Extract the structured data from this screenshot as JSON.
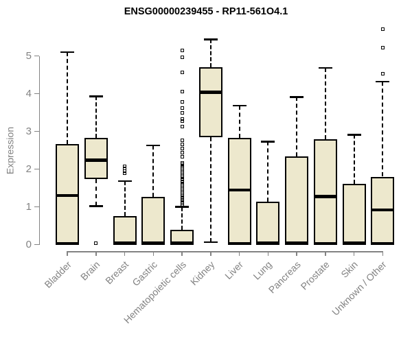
{
  "chart_data": {
    "type": "boxplot",
    "title": "ENSG00000239455 - RP11-561O4.1",
    "ylabel": "Expression",
    "xlabel": "",
    "ylim": [
      0,
      5.75
    ],
    "yticks": [
      0,
      1,
      2,
      3,
      4,
      5
    ],
    "grid": false,
    "legend": "none",
    "colors": {
      "box_fill": "#EDE8CD",
      "box_border": "#000000",
      "median": "#000000",
      "whisker": "#000000",
      "axis": "#828282",
      "tick_label": "#828282",
      "title": "#000000",
      "background": "#ffffff"
    },
    "categories": [
      "Bladder",
      "Brain",
      "Breast",
      "Gastric",
      "Hematopoietic cells",
      "Kidney",
      "Liver",
      "Lung",
      "Pancreas",
      "Prostate",
      "Skin",
      "Unknown / Other"
    ],
    "series": [
      {
        "name": "Bladder",
        "low": 0.02,
        "q1": 0.02,
        "median": 1.3,
        "q3": 2.67,
        "high": 5.1,
        "outliers": []
      },
      {
        "name": "Brain",
        "low": 1.02,
        "q1": 1.73,
        "median": 2.24,
        "q3": 2.82,
        "high": 3.93,
        "outliers": [
          0.03
        ]
      },
      {
        "name": "Breast",
        "low": 0.02,
        "q1": 0.02,
        "median": 0.04,
        "q3": 0.76,
        "high": 1.68,
        "outliers": [
          1.89,
          1.95,
          2.01,
          2.07
        ]
      },
      {
        "name": "Gastric",
        "low": 0.02,
        "q1": 0.02,
        "median": 0.04,
        "q3": 1.26,
        "high": 2.63,
        "outliers": []
      },
      {
        "name": "Hematopoietic cells",
        "low": 0.02,
        "q1": 0.02,
        "median": 0.04,
        "q3": 0.39,
        "high": 1.0,
        "outliers": [
          1.02,
          1.05,
          1.09,
          1.12,
          1.16,
          1.19,
          1.23,
          1.26,
          1.3,
          1.33,
          1.37,
          1.4,
          1.44,
          1.47,
          1.51,
          1.54,
          1.58,
          1.61,
          1.65,
          1.68,
          1.72,
          1.75,
          1.79,
          1.82,
          1.86,
          1.89,
          1.93,
          1.96,
          2.0,
          2.04,
          2.08,
          2.12,
          2.16,
          2.33,
          2.44,
          2.55,
          2.65,
          2.76,
          3.12,
          3.27,
          3.33,
          3.49,
          3.61,
          3.79,
          4.06,
          4.57,
          4.97,
          5.15
        ]
      },
      {
        "name": "Kidney",
        "low": 0.06,
        "q1": 2.85,
        "median": 4.04,
        "q3": 4.7,
        "high": 5.44,
        "outliers": []
      },
      {
        "name": "Liver",
        "low": 0.02,
        "q1": 0.02,
        "median": 1.45,
        "q3": 2.82,
        "high": 3.68,
        "outliers": []
      },
      {
        "name": "Lung",
        "low": 0.02,
        "q1": 0.02,
        "median": 0.04,
        "q3": 1.13,
        "high": 2.73,
        "outliers": []
      },
      {
        "name": "Pancreas",
        "low": 0.02,
        "q1": 0.02,
        "median": 0.04,
        "q3": 2.33,
        "high": 3.91,
        "outliers": []
      },
      {
        "name": "Prostate",
        "low": 0.02,
        "q1": 0.02,
        "median": 1.27,
        "q3": 2.79,
        "high": 4.68,
        "outliers": []
      },
      {
        "name": "Skin",
        "low": 0.02,
        "q1": 0.02,
        "median": 0.04,
        "q3": 1.61,
        "high": 2.91,
        "outliers": []
      },
      {
        "name": "Unknown / Other",
        "low": 0.02,
        "q1": 0.02,
        "median": 0.92,
        "q3": 1.8,
        "high": 4.32,
        "outliers": [
          4.53,
          5.21,
          5.71
        ]
      }
    ]
  }
}
